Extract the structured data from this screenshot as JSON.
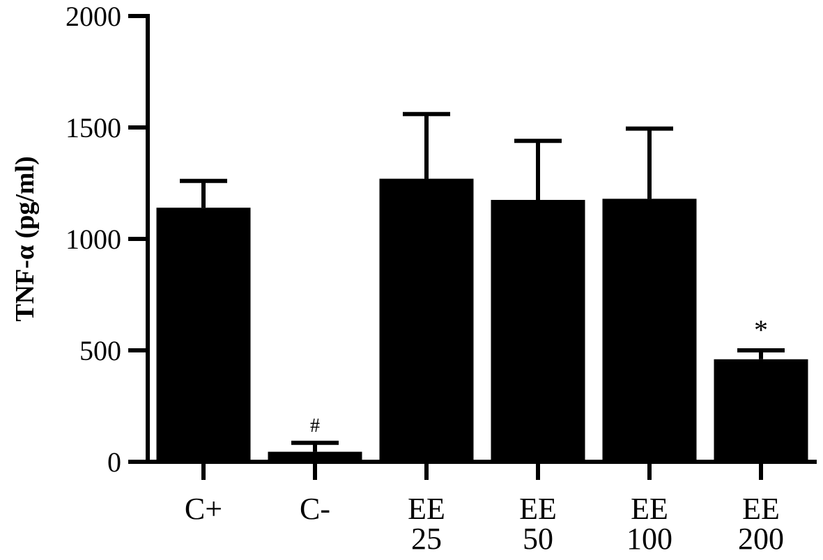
{
  "chart_data": {
    "type": "bar",
    "ylabel": "TNF-α (pg/ml)",
    "xlabel": "",
    "ylim": [
      0,
      2000
    ],
    "yticks": [
      0,
      500,
      1000,
      1500,
      2000
    ],
    "grid": false,
    "categories": [
      {
        "lines": [
          "C+"
        ]
      },
      {
        "lines": [
          "C-"
        ]
      },
      {
        "lines": [
          "EE",
          "25"
        ]
      },
      {
        "lines": [
          "EE",
          "50"
        ]
      },
      {
        "lines": [
          "EE",
          "100"
        ]
      },
      {
        "lines": [
          "EE",
          "200"
        ]
      }
    ],
    "series": [
      {
        "values": [
          1140,
          45,
          1270,
          1175,
          1180,
          460
        ],
        "errors": [
          120,
          40,
          290,
          265,
          315,
          40
        ],
        "color": "#000000"
      }
    ],
    "annotations": [
      "",
      "#",
      "",
      "",
      "",
      "*"
    ]
  }
}
